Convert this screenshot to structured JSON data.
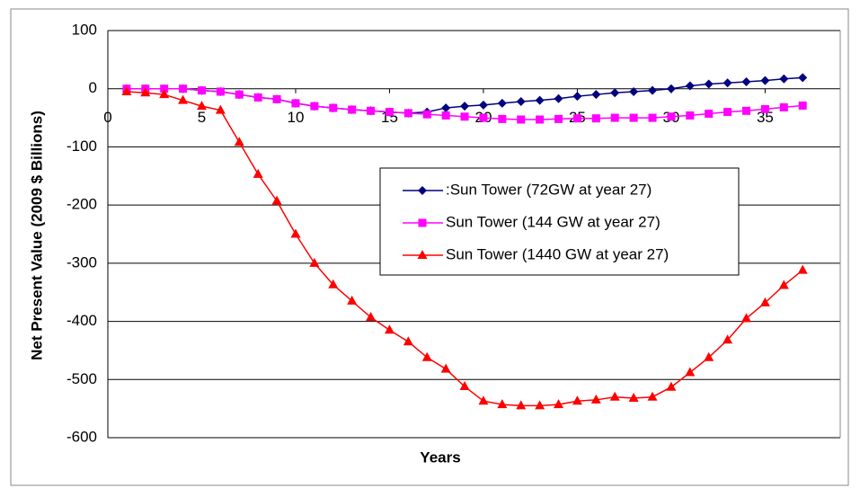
{
  "chart_data": {
    "type": "line",
    "x_label": "Years",
    "y_label": "Net Present Value (2009 $ Billions)",
    "x": [
      1,
      2,
      3,
      4,
      5,
      6,
      7,
      8,
      9,
      10,
      11,
      12,
      13,
      14,
      15,
      16,
      17,
      18,
      19,
      20,
      21,
      22,
      23,
      24,
      25,
      26,
      27,
      28,
      29,
      30,
      31,
      32,
      33,
      34,
      35,
      36,
      37
    ],
    "series": [
      {
        "name": ":Sun Tower (72GW at year 27)",
        "color": "#000080",
        "marker": "diamond",
        "values": [
          0,
          0,
          0,
          0,
          -3,
          -5,
          -10,
          -15,
          -18,
          -25,
          -30,
          -33,
          -36,
          -38,
          -40,
          -42,
          -40,
          -33,
          -30,
          -28,
          -25,
          -22,
          -20,
          -17,
          -13,
          -10,
          -7,
          -5,
          -3,
          0,
          5,
          8,
          10,
          12,
          14,
          17,
          19
        ]
      },
      {
        "name": "Sun Tower (144 GW at year 27)",
        "color": "#FF00FF",
        "marker": "square",
        "values": [
          0,
          0,
          0,
          0,
          -3,
          -5,
          -10,
          -15,
          -18,
          -25,
          -30,
          -33,
          -36,
          -38,
          -40,
          -42,
          -44,
          -46,
          -48,
          -50,
          -52,
          -53,
          -53,
          -52,
          -51,
          -51,
          -50,
          -50,
          -50,
          -48,
          -46,
          -43,
          -40,
          -38,
          -35,
          -32,
          -29
        ]
      },
      {
        "name": "Sun Tower (1440 GW at year 27)",
        "color": "#FF0000",
        "marker": "triangle",
        "values": [
          -5,
          -7,
          -10,
          -20,
          -30,
          -37,
          -92,
          -147,
          -193,
          -250,
          -300,
          -337,
          -365,
          -393,
          -415,
          -435,
          -462,
          -482,
          -512,
          -537,
          -543,
          -545,
          -545,
          -543,
          -537,
          -535,
          -530,
          -532,
          -530,
          -513,
          -488,
          -462,
          -432,
          -395,
          -368,
          -338,
          -312
        ]
      }
    ],
    "xlim": [
      0,
      39
    ],
    "xticks": [
      0,
      5,
      10,
      15,
      20,
      25,
      30,
      35
    ],
    "ylim": [
      -600,
      100
    ],
    "yticks": [
      100,
      0,
      -100,
      -200,
      -300,
      -400,
      -500,
      -600
    ],
    "grid": true,
    "legend_position": "center-right"
  }
}
